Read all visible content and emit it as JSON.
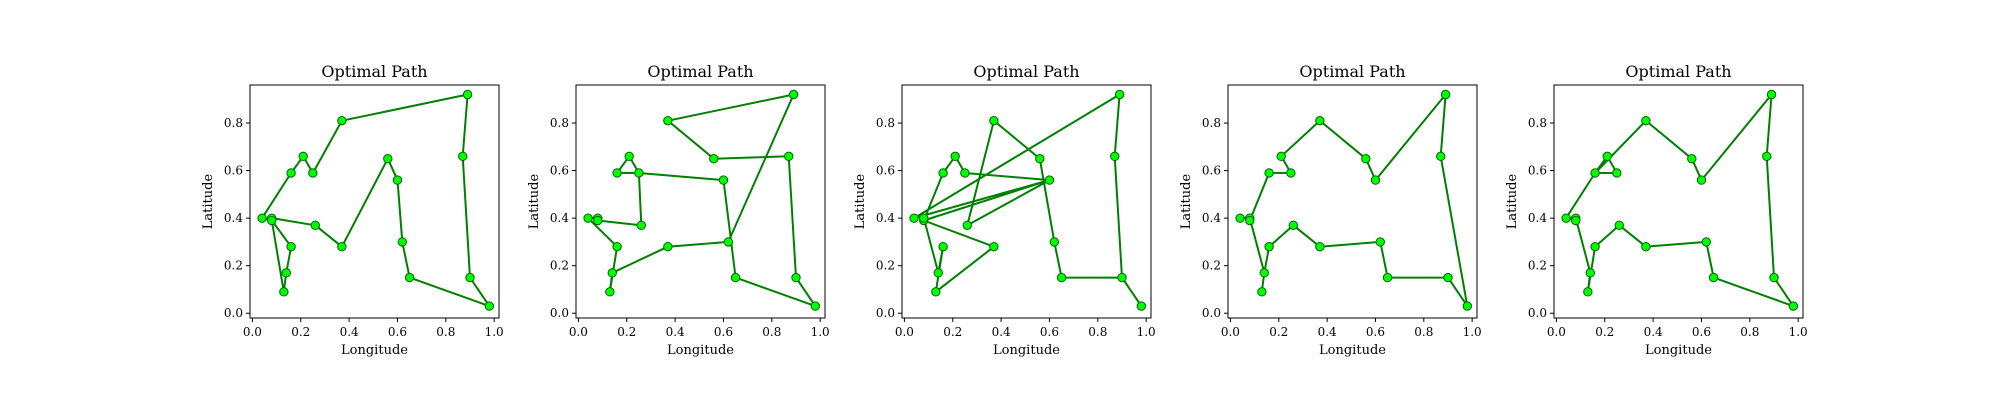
{
  "chart_data": [
    {
      "type": "line",
      "title": "Optimal Path",
      "xlabel": "Longitude",
      "ylabel": "Latitude",
      "xlim": [
        -0.01,
        1.02
      ],
      "ylim": [
        -0.02,
        0.96
      ],
      "xticks": [
        "0.0",
        "0.2",
        "0.4",
        "0.6",
        "0.8",
        "1.0"
      ],
      "yticks": [
        "0.0",
        "0.2",
        "0.4",
        "0.6",
        "0.8"
      ],
      "grid": false,
      "series": [
        {
          "x": [
            0.04,
            0.16,
            0.21,
            0.25,
            0.37,
            0.89,
            0.87,
            0.9,
            0.98,
            0.65,
            0.62,
            0.6,
            0.56,
            0.37,
            0.26,
            0.08,
            0.08,
            0.16,
            0.14,
            0.13,
            0.08,
            0.04
          ],
          "y": [
            0.4,
            0.59,
            0.66,
            0.59,
            0.81,
            0.92,
            0.66,
            0.15,
            0.03,
            0.15,
            0.3,
            0.56,
            0.65,
            0.28,
            0.37,
            0.4,
            0.39,
            0.28,
            0.17,
            0.09,
            0.39,
            0.4
          ]
        }
      ]
    },
    {
      "type": "line",
      "title": "Optimal Path",
      "xlabel": "Longitude",
      "ylabel": "Latitude",
      "xlim": [
        -0.01,
        1.02
      ],
      "ylim": [
        -0.02,
        0.96
      ],
      "xticks": [
        "0.0",
        "0.2",
        "0.4",
        "0.6",
        "0.8",
        "1.0"
      ],
      "yticks": [
        "0.0",
        "0.2",
        "0.4",
        "0.6",
        "0.8"
      ],
      "grid": false,
      "series": [
        {
          "x": [
            0.04,
            0.08,
            0.08,
            0.26,
            0.25,
            0.16,
            0.21,
            0.25,
            0.6,
            0.65,
            0.98,
            0.9,
            0.87,
            0.56,
            0.37,
            0.89,
            0.62,
            0.37,
            0.14,
            0.13,
            0.16,
            0.04
          ],
          "y": [
            0.4,
            0.4,
            0.39,
            0.37,
            0.59,
            0.59,
            0.66,
            0.59,
            0.56,
            0.15,
            0.03,
            0.15,
            0.66,
            0.65,
            0.81,
            0.92,
            0.3,
            0.28,
            0.17,
            0.09,
            0.28,
            0.4
          ]
        }
      ]
    },
    {
      "type": "line",
      "title": "Optimal Path",
      "xlabel": "Longitude",
      "ylabel": "Latitude",
      "xlim": [
        -0.01,
        1.02
      ],
      "ylim": [
        -0.02,
        0.96
      ],
      "xticks": [
        "0.0",
        "0.2",
        "0.4",
        "0.6",
        "0.8",
        "1.0"
      ],
      "yticks": [
        "0.0",
        "0.2",
        "0.4",
        "0.6",
        "0.8"
      ],
      "grid": false,
      "series": [
        {
          "x": [
            0.04,
            0.89,
            0.87,
            0.9,
            0.98,
            0.9,
            0.65,
            0.62,
            0.56,
            0.37,
            0.26,
            0.6,
            0.08,
            0.37,
            0.13,
            0.16,
            0.14,
            0.08,
            0.08,
            0.16,
            0.21,
            0.25,
            0.6,
            0.04
          ],
          "y": [
            0.4,
            0.92,
            0.66,
            0.15,
            0.03,
            0.15,
            0.15,
            0.3,
            0.65,
            0.81,
            0.37,
            0.56,
            0.39,
            0.28,
            0.09,
            0.28,
            0.17,
            0.4,
            0.39,
            0.59,
            0.66,
            0.59,
            0.56,
            0.4
          ]
        }
      ]
    },
    {
      "type": "line",
      "title": "Optimal Path",
      "xlabel": "Longitude",
      "ylabel": "Latitude",
      "xlim": [
        -0.01,
        1.02
      ],
      "ylim": [
        -0.02,
        0.96
      ],
      "xticks": [
        "0.0",
        "0.2",
        "0.4",
        "0.6",
        "0.8",
        "1.0"
      ],
      "yticks": [
        "0.0",
        "0.2",
        "0.4",
        "0.6",
        "0.8"
      ],
      "grid": false,
      "series": [
        {
          "x": [
            0.04,
            0.08,
            0.08,
            0.16,
            0.25,
            0.21,
            0.37,
            0.56,
            0.6,
            0.89,
            0.87,
            0.98,
            0.9,
            0.65,
            0.62,
            0.37,
            0.26,
            0.16,
            0.14,
            0.13,
            0.14,
            0.08,
            0.04
          ],
          "y": [
            0.4,
            0.4,
            0.39,
            0.59,
            0.59,
            0.66,
            0.81,
            0.65,
            0.56,
            0.92,
            0.66,
            0.03,
            0.15,
            0.15,
            0.3,
            0.28,
            0.37,
            0.28,
            0.17,
            0.09,
            0.17,
            0.4,
            0.4
          ]
        }
      ]
    },
    {
      "type": "line",
      "title": "Optimal Path",
      "xlabel": "Longitude",
      "ylabel": "Latitude",
      "xlim": [
        -0.01,
        1.02
      ],
      "ylim": [
        -0.02,
        0.96
      ],
      "xticks": [
        "0.0",
        "0.2",
        "0.4",
        "0.6",
        "0.8",
        "1.0"
      ],
      "yticks": [
        "0.0",
        "0.2",
        "0.4",
        "0.6",
        "0.8"
      ],
      "grid": false,
      "series": [
        {
          "x": [
            0.04,
            0.08,
            0.08,
            0.04,
            0.16,
            0.25,
            0.21,
            0.16,
            0.37,
            0.56,
            0.6,
            0.89,
            0.87,
            0.9,
            0.98,
            0.65,
            0.62,
            0.37,
            0.26,
            0.16,
            0.13,
            0.14,
            0.08,
            0.04
          ],
          "y": [
            0.4,
            0.4,
            0.39,
            0.4,
            0.59,
            0.59,
            0.66,
            0.59,
            0.81,
            0.65,
            0.56,
            0.92,
            0.66,
            0.15,
            0.03,
            0.15,
            0.3,
            0.28,
            0.37,
            0.28,
            0.09,
            0.17,
            0.4,
            0.4
          ]
        }
      ]
    }
  ],
  "style": {
    "line_color": "#008000",
    "marker_fill": "#00ff00",
    "marker_edge": "#006400"
  }
}
